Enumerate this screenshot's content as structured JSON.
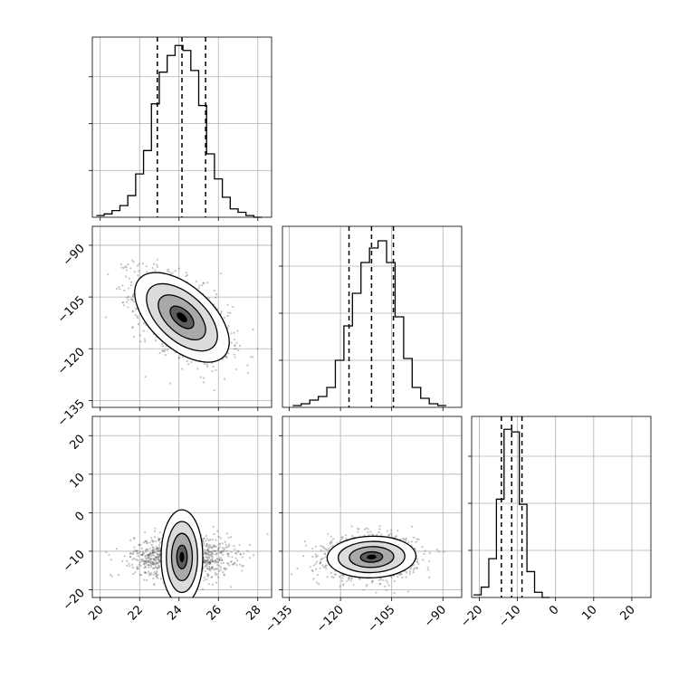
{
  "chart_data": {
    "type": "corner",
    "grid": true,
    "parameters": [
      {
        "index": 0,
        "range": [
          19.6,
          28.7
        ],
        "ticks": [
          20,
          22,
          24,
          26,
          28
        ],
        "tick_labels": [
          "20",
          "22",
          "24",
          "26",
          "28"
        ],
        "quantiles": [
          22.9,
          24.15,
          25.35
        ],
        "mean": 24.15,
        "sd": 1.2
      },
      {
        "index": 1,
        "range": [
          -137.0,
          -84.5
        ],
        "ticks": [
          -135,
          -120,
          -105,
          -90
        ],
        "tick_labels": [
          "−135",
          "−120",
          "−105",
          "−90"
        ],
        "quantiles": [
          -117.5,
          -110.9,
          -104.5
        ],
        "mean": -110.9,
        "sd": 6.5
      },
      {
        "index": 2,
        "range": [
          -22.0,
          25.0
        ],
        "ticks": [
          -20,
          -10,
          0,
          10,
          20
        ],
        "tick_labels": [
          "−20",
          "−10",
          "0",
          "10",
          "20"
        ],
        "quantiles": [
          -14.2,
          -11.5,
          -8.8
        ],
        "mean": -11.5,
        "sd": 2.7
      }
    ],
    "histograms": [
      {
        "param": 0,
        "edges": [
          19.8,
          20.2,
          20.6,
          21.0,
          21.4,
          21.8,
          22.2,
          22.6,
          23.0,
          23.4,
          23.8,
          24.2,
          24.6,
          25.0,
          25.4,
          25.8,
          26.2,
          26.6,
          27.0,
          27.4,
          27.8,
          28.2
        ],
        "counts": [
          1,
          2,
          4,
          7,
          13,
          26,
          40,
          68,
          87,
          97,
          103,
          100,
          88,
          67,
          38,
          23,
          12,
          5,
          3,
          1,
          0
        ],
        "ymax": 108
      },
      {
        "param": 1,
        "edges": [
          -134,
          -131.5,
          -129,
          -126.5,
          -124,
          -121.5,
          -119,
          -116.5,
          -114,
          -111.5,
          -109,
          -106.5,
          -104,
          -101.5,
          -99,
          -96.5,
          -94,
          -91.5,
          -89
        ],
        "counts": [
          1,
          2,
          4,
          6,
          11,
          26,
          45,
          63,
          80,
          88,
          92,
          80,
          50,
          27,
          11,
          5,
          2,
          1
        ],
        "ymax": 100
      },
      {
        "param": 2,
        "edges": [
          -21.5,
          -19.5,
          -17.5,
          -15.5,
          -13.5,
          -11.5,
          -9.5,
          -7.5,
          -5.5,
          -3.5,
          -1.5
        ],
        "counts": [
          1,
          4,
          15,
          38,
          65,
          64,
          36,
          10,
          2,
          0
        ],
        "ymax": 70
      }
    ],
    "pairs": [
      {
        "x_param": 0,
        "y_param": 1,
        "correlation": -0.55,
        "contour_levels": 4,
        "scatter_points": 1400
      },
      {
        "x_param": 0,
        "y_param": 2,
        "correlation": 0.0,
        "contour_levels": 4,
        "scatter_points": 1400
      },
      {
        "x_param": 1,
        "y_param": 2,
        "correlation": 0.05,
        "contour_levels": 4,
        "scatter_points": 1400
      }
    ],
    "colors": {
      "hist": "#000000",
      "points": "#555555",
      "grid": "#b0b0b0",
      "frame": "#000000"
    }
  }
}
